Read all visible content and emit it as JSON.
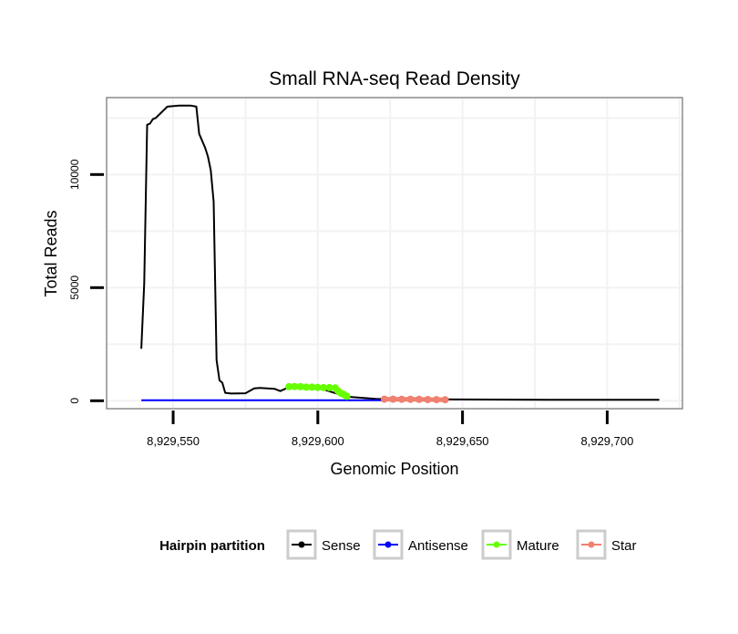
{
  "chart_data": {
    "type": "line",
    "title": "Small RNA-seq Read Density",
    "xlabel": "Genomic Position",
    "ylabel": "Total Reads",
    "xlim": [
      8929527,
      8929726
    ],
    "ylim": [
      -350,
      13400
    ],
    "x_ticks": [
      8929550,
      8929600,
      8929650,
      8929700
    ],
    "x_tick_labels": [
      "8,929,550",
      "8,929,600",
      "8,929,650",
      "8,929,700"
    ],
    "y_ticks": [
      0,
      5000,
      10000
    ],
    "y_tick_labels": [
      "0",
      "5000",
      "10000"
    ],
    "grid": true,
    "legend": {
      "title": "Hairpin partition",
      "placement": "bottom",
      "entries": [
        "Sense",
        "Antisense",
        "Mature",
        "Star"
      ]
    },
    "series": [
      {
        "name": "Sense",
        "color": "#000000",
        "style": "line",
        "x": [
          8929539,
          8929540,
          8929541,
          8929542,
          8929543,
          8929544,
          8929546,
          8929548,
          8929552,
          8929556,
          8929558,
          8929559,
          8929561,
          8929562,
          8929563,
          8929564,
          8929565,
          8929566,
          8929567,
          8929568,
          8929570,
          8929575,
          8929578,
          8929580,
          8929585,
          8929587,
          8929590,
          8929600,
          8929610,
          8929620,
          8929640,
          8929680,
          8929718
        ],
        "y": [
          2300,
          5200,
          12200,
          12250,
          12450,
          12500,
          12750,
          13000,
          13050,
          13050,
          13000,
          11800,
          11200,
          10800,
          10200,
          8800,
          1800,
          900,
          800,
          350,
          320,
          330,
          550,
          570,
          530,
          430,
          600,
          580,
          180,
          80,
          60,
          40,
          40
        ]
      },
      {
        "name": "Antisense",
        "color": "#0000ff",
        "style": "line",
        "x": [
          8929539,
          8929625
        ],
        "y": [
          20,
          20
        ]
      },
      {
        "name": "Mature",
        "color": "#66ff00",
        "style": "points",
        "x": [
          8929590,
          8929592,
          8929594,
          8929596,
          8929598,
          8929600,
          8929602,
          8929604,
          8929606,
          8929607,
          8929608,
          8929609,
          8929610
        ],
        "y": [
          620,
          630,
          620,
          600,
          600,
          590,
          580,
          580,
          570,
          430,
          330,
          280,
          200
        ]
      },
      {
        "name": "Star",
        "color": "#f08070",
        "style": "points",
        "x": [
          8929623,
          8929626,
          8929629,
          8929632,
          8929635,
          8929638,
          8929641,
          8929644
        ],
        "y": [
          70,
          70,
          65,
          65,
          60,
          55,
          50,
          45
        ]
      }
    ]
  }
}
